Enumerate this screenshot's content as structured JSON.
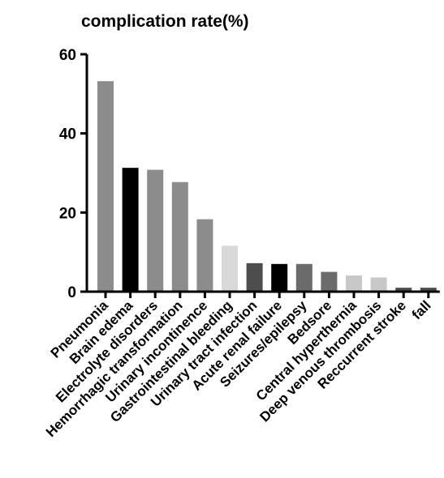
{
  "chart_data": {
    "type": "bar",
    "title": "complication rate(%)",
    "xlabel": "",
    "ylabel": "",
    "ylim": [
      0,
      60
    ],
    "yticks": [
      0,
      20,
      40,
      60
    ],
    "grid": false,
    "categories": [
      "Pneumonia",
      "Brain edema",
      "Electrolyte disorders",
      "Hemorrhagic transformation",
      "Urinary incontinence",
      "Gastrointestinal bleeding",
      "Urinary tract infection",
      "Acute renal failure",
      "Seizures/epilepsy",
      "Bedsore",
      "Central hyperthernia",
      "Deep venous thrombosis",
      "Reccurrent stroke",
      "fall"
    ],
    "values": [
      53.2,
      31.3,
      30.8,
      27.7,
      18.3,
      11.6,
      7.2,
      7.0,
      7.0,
      5.0,
      4.1,
      3.6,
      1.0,
      1.0
    ],
    "colors": [
      "#8c8c8c",
      "#000000",
      "#8c8c8c",
      "#8c8c8c",
      "#8c8c8c",
      "#d9d9d9",
      "#4d4d4d",
      "#000000",
      "#6b6b6b",
      "#6b6b6b",
      "#c8c8c8",
      "#c8c8c8",
      "#4d4d4d",
      "#4d4d4d"
    ]
  }
}
